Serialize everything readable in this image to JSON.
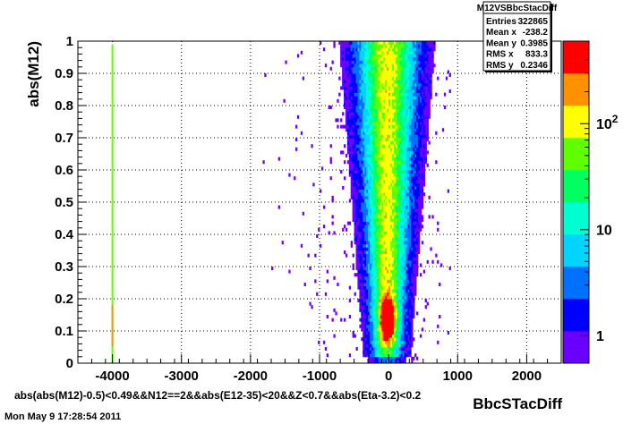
{
  "chart_data": {
    "type": "heatmap",
    "title": "",
    "xlabel": "BbcSTacDiff",
    "ylabel": "abs(M12)",
    "xlim": [
      -4500,
      2500
    ],
    "ylim": [
      0,
      1
    ],
    "x_ticks": [
      -4000,
      -3000,
      -2000,
      -1000,
      0,
      1000,
      2000
    ],
    "y_ticks": [
      0,
      0.1,
      0.2,
      0.3,
      0.4,
      0.5,
      0.6,
      0.7,
      0.8,
      0.9,
      1
    ],
    "z_scale": "log",
    "z_ticks": [
      {
        "label": "1",
        "value": 1
      },
      {
        "label": "10",
        "value": 10
      },
      {
        "label": "10",
        "sup": "2",
        "value": 100
      }
    ],
    "grid": true,
    "colormap": [
      "#6a00ff",
      "#0000ff",
      "#0070ff",
      "#00d4ff",
      "#00ffd0",
      "#00ff60",
      "#60ff00",
      "#ffff00",
      "#ff9000",
      "#ff0000"
    ],
    "stats_box": {
      "name": "M12VSBbcStacDiff",
      "rows": [
        {
          "label": "Entries",
          "value": "322865"
        },
        {
          "label": "Mean x",
          "value": "-238.2"
        },
        {
          "label": "Mean y",
          "value": "0.3985"
        },
        {
          "label": "RMS x",
          "value": "833.3"
        },
        {
          "label": "RMS y",
          "value": "0.2346"
        }
      ]
    },
    "cut_text": "abs(abs(M12)-0.5)<0.49&&N12==2&&abs(E12-35)<20&&Z<0.7&&abs(Eta-3.2)<0.2",
    "date_text": "Mon May  9 17:28:54 2011"
  }
}
